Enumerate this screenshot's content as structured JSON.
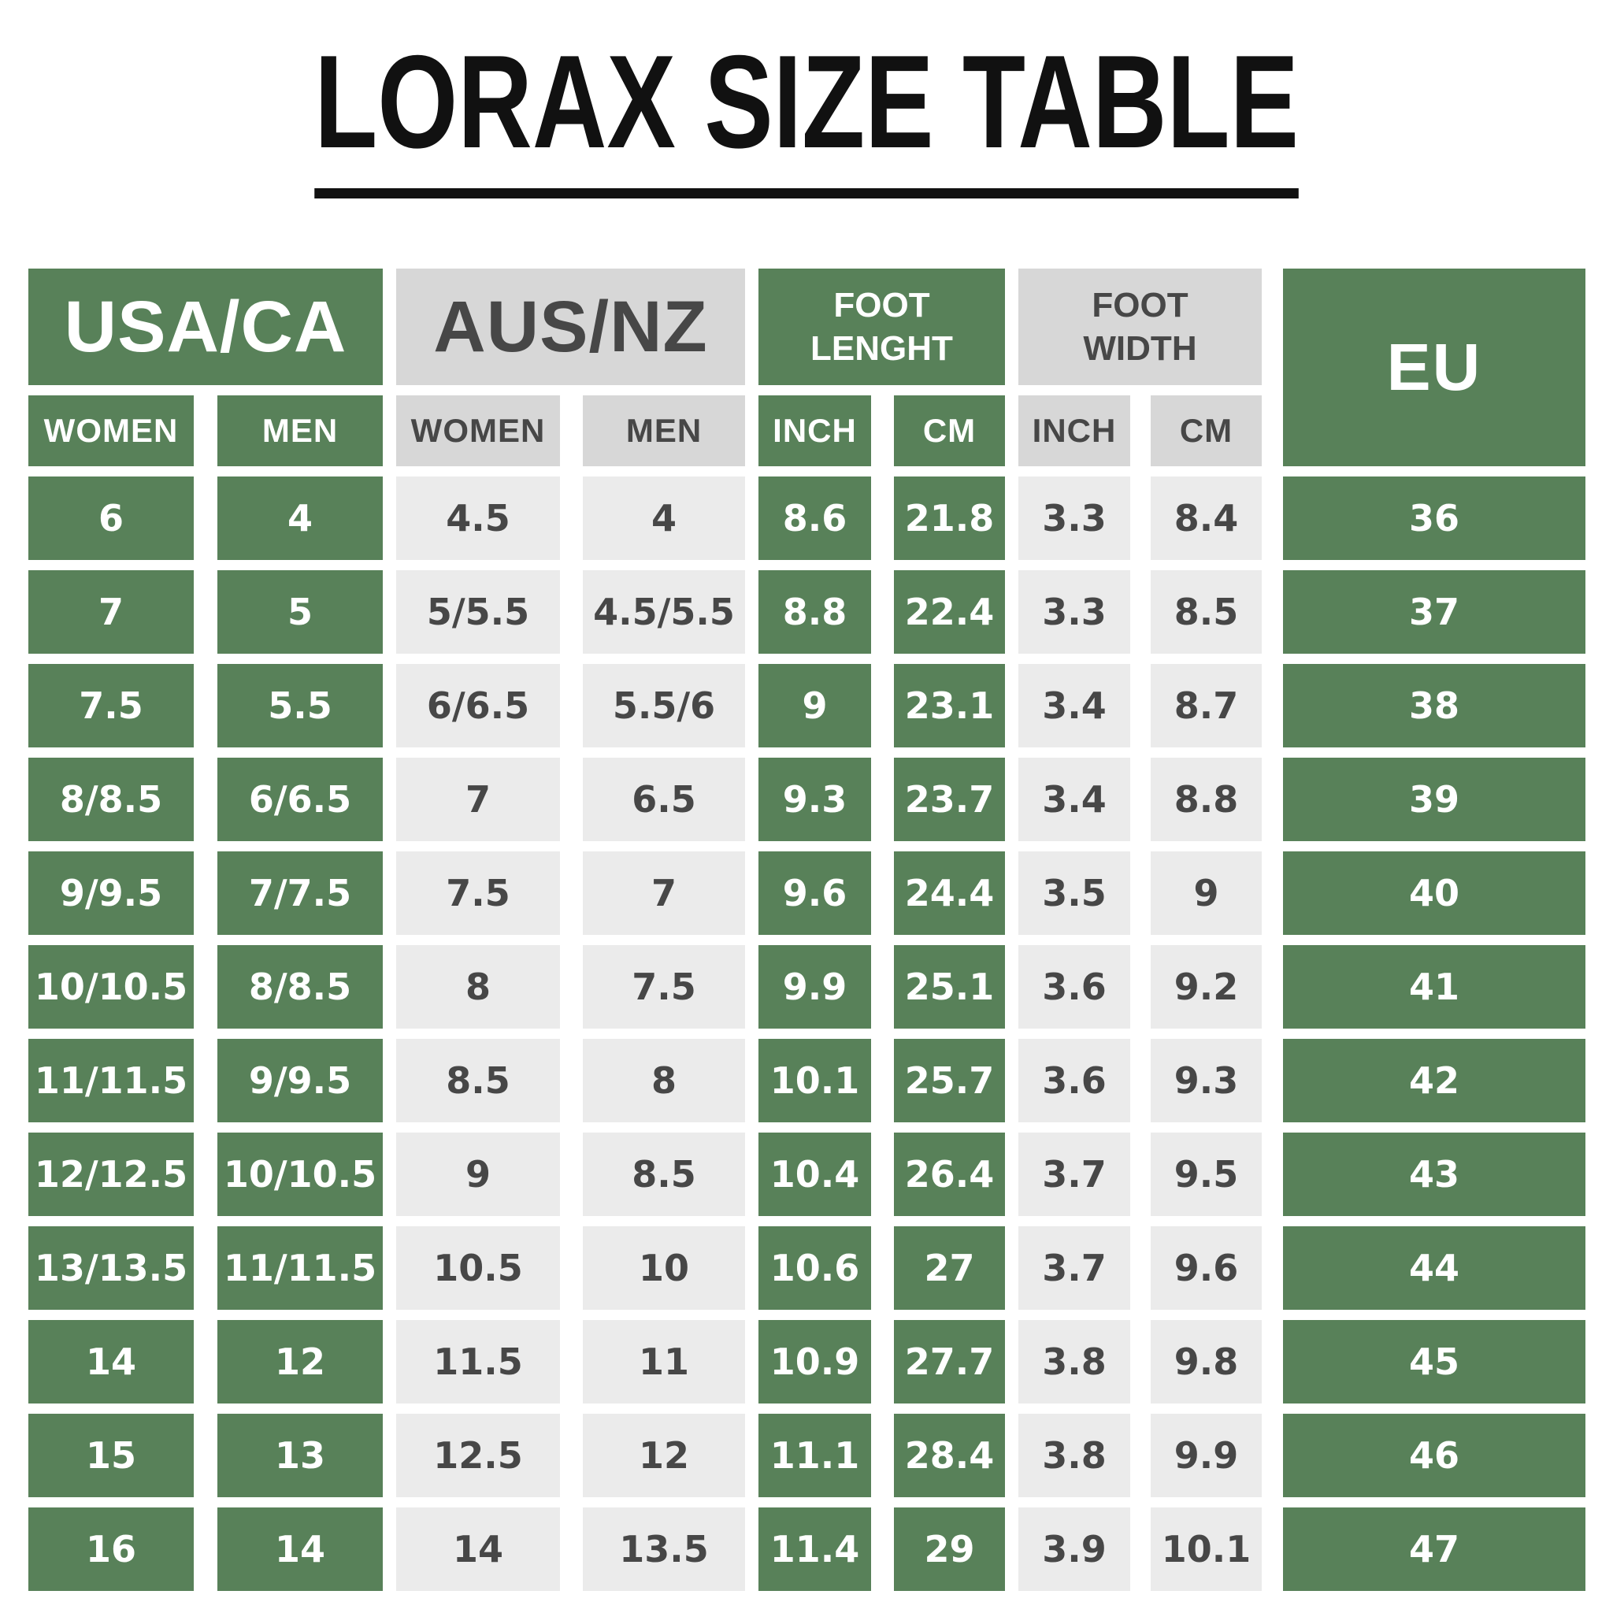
{
  "title": "LORAX SIZE TABLE",
  "colors": {
    "green": "#588159",
    "header_gray": "#d7d7d7",
    "cell_gray": "#ebebeb",
    "dark_text": "#474747",
    "title_black": "#111111",
    "white_text": "#ffffff"
  },
  "table": {
    "groups": [
      {
        "label": "USA/CA",
        "style": "green",
        "sub": [
          "WOMEN",
          "MEN"
        ]
      },
      {
        "label": "AUS/NZ",
        "style": "gray",
        "sub": [
          "WOMEN",
          "MEN"
        ]
      },
      {
        "label": "FOOT LENGHT",
        "style": "green",
        "sub": [
          "INCH",
          "CM"
        ]
      },
      {
        "label": "FOOT WIDTH",
        "style": "gray",
        "sub": [
          "INCH",
          "CM"
        ]
      },
      {
        "label": "EU",
        "style": "green",
        "sub": []
      }
    ],
    "rows": [
      [
        "6",
        "4",
        "4.5",
        "4",
        "8.6",
        "21.8",
        "3.3",
        "8.4",
        "36"
      ],
      [
        "7",
        "5",
        "5/5.5",
        "4.5/5.5",
        "8.8",
        "22.4",
        "3.3",
        "8.5",
        "37"
      ],
      [
        "7.5",
        "5.5",
        "6/6.5",
        "5.5/6",
        "9",
        "23.1",
        "3.4",
        "8.7",
        "38"
      ],
      [
        "8/8.5",
        "6/6.5",
        "7",
        "6.5",
        "9.3",
        "23.7",
        "3.4",
        "8.8",
        "39"
      ],
      [
        "9/9.5",
        "7/7.5",
        "7.5",
        "7",
        "9.6",
        "24.4",
        "3.5",
        "9",
        "40"
      ],
      [
        "10/10.5",
        "8/8.5",
        "8",
        "7.5",
        "9.9",
        "25.1",
        "3.6",
        "9.2",
        "41"
      ],
      [
        "11/11.5",
        "9/9.5",
        "8.5",
        "8",
        "10.1",
        "25.7",
        "3.6",
        "9.3",
        "42"
      ],
      [
        "12/12.5",
        "10/10.5",
        "9",
        "8.5",
        "10.4",
        "26.4",
        "3.7",
        "9.5",
        "43"
      ],
      [
        "13/13.5",
        "11/11.5",
        "10.5",
        "10",
        "10.6",
        "27",
        "3.7",
        "9.6",
        "44"
      ],
      [
        "14",
        "12",
        "11.5",
        "11",
        "10.9",
        "27.7",
        "3.8",
        "9.8",
        "45"
      ],
      [
        "15",
        "13",
        "12.5",
        "12",
        "11.1",
        "28.4",
        "3.8",
        "9.9",
        "46"
      ],
      [
        "16",
        "14",
        "14",
        "13.5",
        "11.4",
        "29",
        "3.9",
        "10.1",
        "47"
      ]
    ]
  }
}
